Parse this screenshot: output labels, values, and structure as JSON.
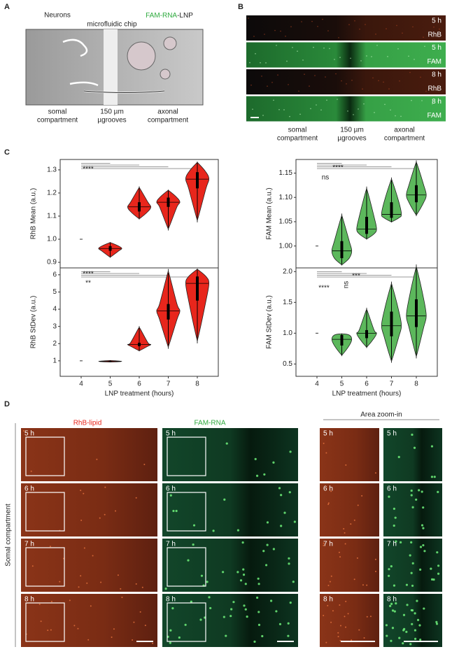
{
  "panel_labels": [
    "A",
    "B",
    "C",
    "D"
  ],
  "panel_a": {
    "left_title": "Neurons",
    "right_title": [
      "FAM-RNA",
      "-LNP"
    ],
    "chip_label": "microfluidic chip",
    "bottom_labels": [
      [
        "somal",
        "compartment"
      ],
      [
        "150 µm",
        "µgrooves"
      ],
      [
        "axonal",
        "compartment"
      ]
    ]
  },
  "panel_b": {
    "rows": [
      {
        "time": "5 h",
        "channel": "RhB"
      },
      {
        "time": "5 h",
        "channel": "FAM"
      },
      {
        "time": "8 h",
        "channel": "RhB"
      },
      {
        "time": "8 h",
        "channel": "FAM"
      }
    ],
    "bottom_labels": [
      [
        "somal",
        "compartment"
      ],
      [
        "150 µm",
        "µgrooves"
      ],
      [
        "axonal",
        "compartment"
      ]
    ]
  },
  "chart_data": [
    {
      "type": "violin",
      "ylabel": "RhB Mean (a.u.)",
      "color": "#e8261c",
      "min": [
        1.0,
        0.924,
        1.09,
        1.05,
        1.09
      ],
      "q1": [
        1.0,
        0.95,
        1.12,
        1.14,
        1.22
      ],
      "median": [
        1.0,
        0.96,
        1.14,
        1.16,
        1.26
      ],
      "q3": [
        1.0,
        0.97,
        1.16,
        1.18,
        1.29
      ],
      "max": [
        1.0,
        0.985,
        1.22,
        1.21,
        1.33
      ],
      "ylim": [
        0.876,
        1.345
      ],
      "yticks": [
        0.9,
        {
          "value": 1.0,
          "label": "1.0"
        },
        1.1,
        1.2,
        1.3
      ],
      "annotations": [
        "****"
      ]
    },
    {
      "type": "violin",
      "ylabel": "RhB StDev (a.u.)",
      "xlabel": "LNP treatment (hours)",
      "categories": [
        "4",
        "5",
        "6",
        "7",
        "8"
      ],
      "color": "#e8261c",
      "min": [
        1.0,
        0.93,
        1.6,
        1.9,
        2.3
      ],
      "q1": [
        1.0,
        0.95,
        1.85,
        3.4,
        4.5
      ],
      "median": [
        1.0,
        0.97,
        1.95,
        3.9,
        5.5
      ],
      "q3": [
        1.0,
        0.99,
        2.05,
        4.3,
        5.9
      ],
      "max": [
        1.0,
        1.02,
        2.9,
        6.1,
        6.3
      ],
      "ylim": [
        0.1,
        6.4
      ],
      "yticks": [
        1,
        2,
        3,
        4,
        5,
        6
      ],
      "annotations": [
        "****",
        "**"
      ]
    },
    {
      "type": "violin",
      "ylabel": "FAM Mean (a.u.)",
      "color": "#5cb85c",
      "min": [
        1.0,
        0.962,
        1.015,
        1.05,
        1.065
      ],
      "q1": [
        1.0,
        0.975,
        1.025,
        1.058,
        1.09
      ],
      "median": [
        1.0,
        0.99,
        1.035,
        1.065,
        1.105
      ],
      "q3": [
        1.0,
        1.01,
        1.06,
        1.09,
        1.125
      ],
      "max": [
        1.0,
        1.06,
        1.115,
        1.135,
        1.17
      ],
      "ylim": [
        0.955,
        1.178
      ],
      "yticks": [
        {
          "value": 1.0,
          "label": "1.00"
        },
        1.05,
        {
          "value": 1.1,
          "label": "1.10"
        },
        1.15
      ],
      "annotations": [
        "ns",
        "****"
      ]
    },
    {
      "type": "violin",
      "ylabel": "FAM StDev (a.u.)",
      "xlabel": "LNP treatment (hours)",
      "categories": [
        "4",
        "5",
        "6",
        "7",
        "8"
      ],
      "color": "#5cb85c",
      "min": [
        1.0,
        0.65,
        0.78,
        0.57,
        0.65
      ],
      "q1": [
        1.0,
        0.8,
        0.92,
        0.95,
        1.1
      ],
      "median": [
        1.0,
        0.9,
        1.0,
        1.12,
        1.28
      ],
      "q3": [
        1.0,
        0.97,
        1.05,
        1.35,
        1.55
      ],
      "max": [
        1.0,
        0.99,
        1.37,
        1.78,
        2.05
      ],
      "ylim": [
        0.3,
        2.06
      ],
      "yticks": [
        0.5,
        {
          "value": 1.0,
          "label": "1.0"
        },
        1.5,
        {
          "value": 2.0,
          "label": "2.0"
        }
      ],
      "annotations": [
        "***",
        "ns",
        "****"
      ]
    }
  ],
  "panel_d": {
    "columns": [
      "RhB-lipid",
      "FAM-RNA"
    ],
    "zoom_title": "Area zoom-in",
    "side_label": "Somal compartment",
    "rows": [
      "5 h",
      "6 h",
      "7 h",
      "8 h"
    ]
  }
}
